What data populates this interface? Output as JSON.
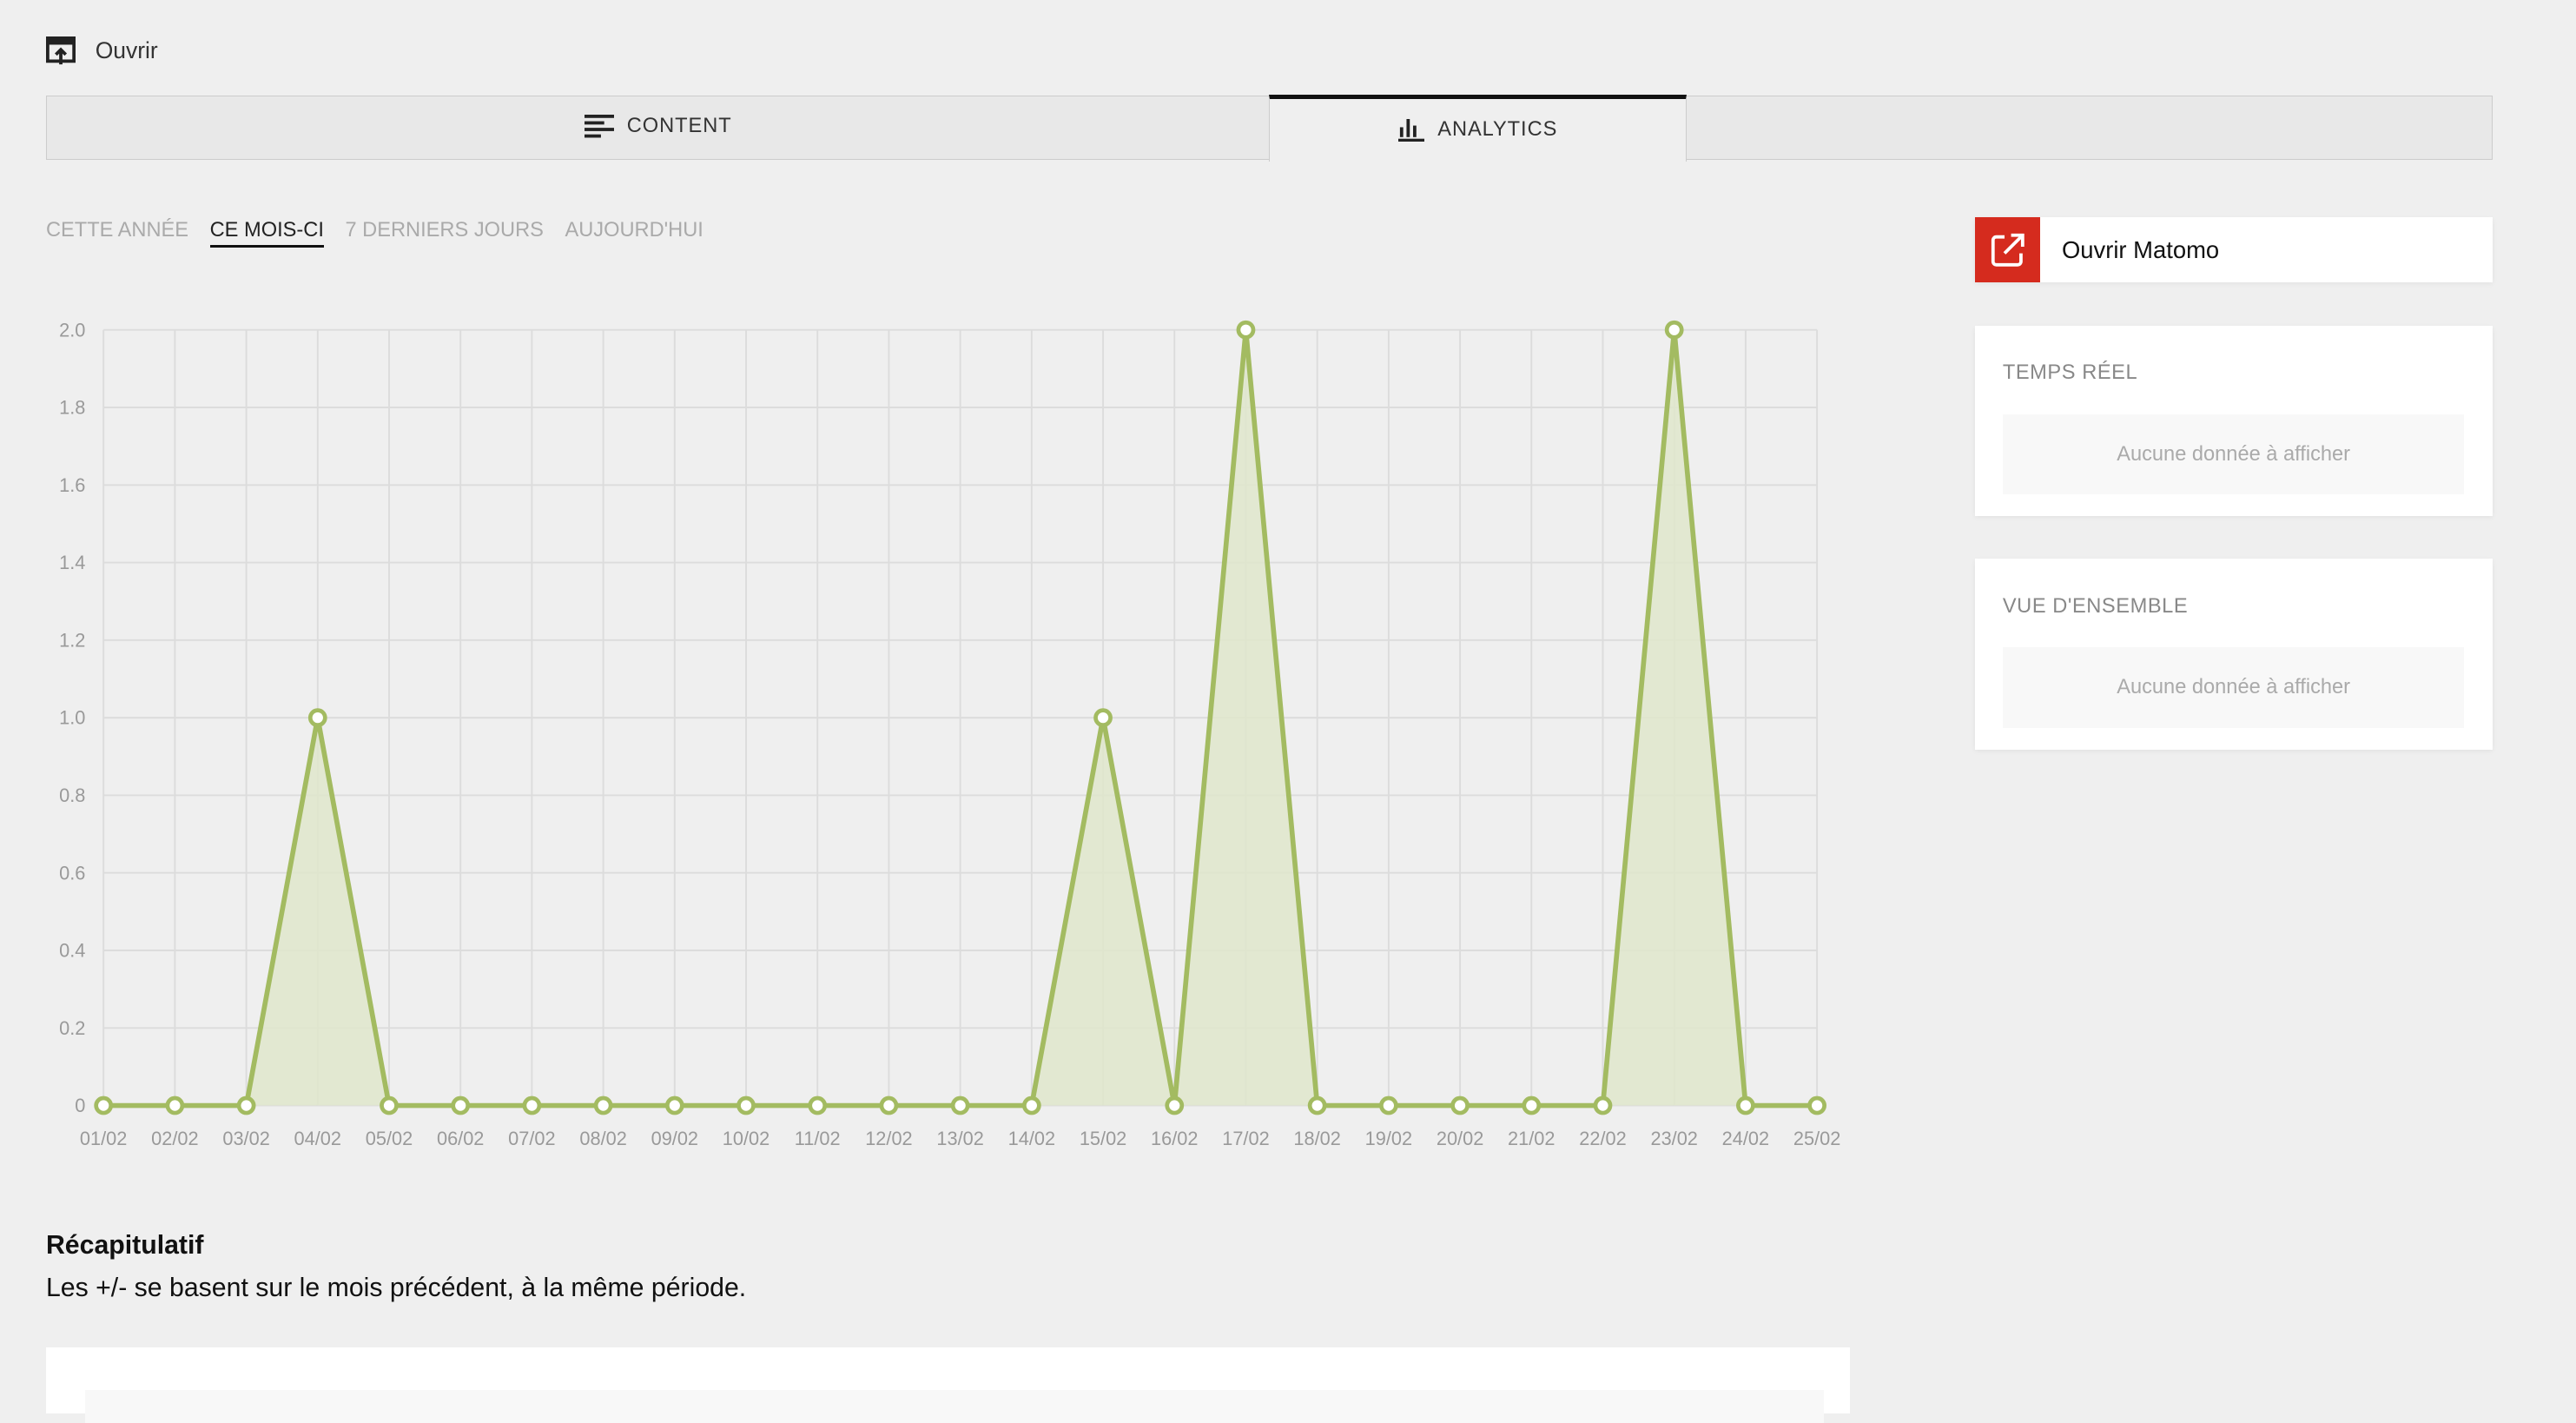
{
  "header": {
    "open_label": "Ouvrir"
  },
  "tabs": [
    {
      "label": "CONTENT",
      "icon": "align-left-icon"
    },
    {
      "label": "ANALYTICS",
      "icon": "bar-chart-icon",
      "active": true
    }
  ],
  "periods": [
    {
      "label": "CETTE ANNÉE"
    },
    {
      "label": "CE MOIS-CI",
      "active": true
    },
    {
      "label": "7 DERNIERS JOURS"
    },
    {
      "label": "AUJOURD'HUI"
    }
  ],
  "sidebar": {
    "matomo_button": {
      "label": "Ouvrir Matomo",
      "icon": "external-link-icon",
      "color": "#d52b1e"
    },
    "realtime": {
      "title": "TEMPS RÉEL",
      "empty": "Aucune donnée à afficher"
    },
    "overview": {
      "title": "VUE D'ENSEMBLE",
      "empty": "Aucune donnée à afficher"
    }
  },
  "recap": {
    "title": "Récapitulatif",
    "subtitle": "Les +/- se basent sur le mois précédent, à la même période."
  },
  "chart_data": {
    "type": "area",
    "categories": [
      "01/02",
      "02/02",
      "03/02",
      "04/02",
      "05/02",
      "06/02",
      "07/02",
      "08/02",
      "09/02",
      "10/02",
      "11/02",
      "12/02",
      "13/02",
      "14/02",
      "15/02",
      "16/02",
      "17/02",
      "18/02",
      "19/02",
      "20/02",
      "21/02",
      "22/02",
      "23/02",
      "24/02",
      "25/02"
    ],
    "values": [
      0,
      0,
      0,
      1,
      0,
      0,
      0,
      0,
      0,
      0,
      0,
      0,
      0,
      0,
      1,
      0,
      2,
      0,
      0,
      0,
      0,
      0,
      2,
      0,
      0
    ],
    "yticks": [
      "0",
      "0.2",
      "0.4",
      "0.6",
      "0.8",
      "1.0",
      "1.2",
      "1.4",
      "1.6",
      "1.8",
      "2.0"
    ],
    "ylim": [
      0,
      2
    ],
    "grid": true,
    "color": "#a3bb61",
    "fill": "#dfe6cb"
  }
}
